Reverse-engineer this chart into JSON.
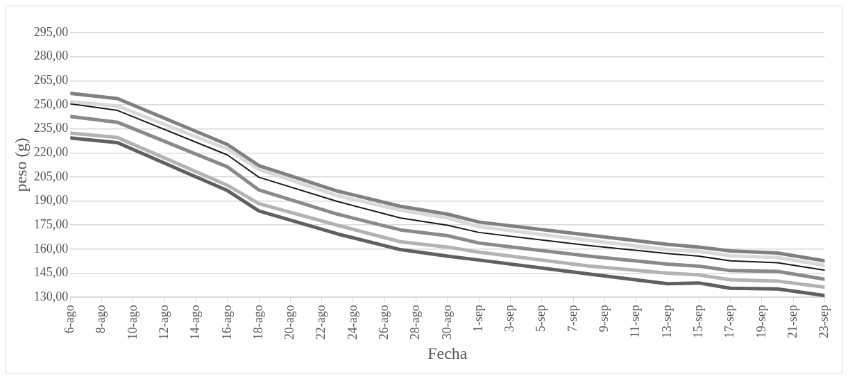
{
  "chart_data": {
    "type": "line",
    "xlabel": "Fecha",
    "ylabel": "peso (g)",
    "x": [
      "--08-06",
      "--08-09",
      "--08-16",
      "--08-18",
      "--08-23",
      "--08-27",
      "--08-30",
      "--09-01",
      "--09-08",
      "--09-13",
      "--09-15",
      "--09-17",
      "--09-20",
      "--09-23"
    ],
    "series": [
      {
        "color": "#808080",
        "values": [
          257.1,
          253.9,
          225.2,
          212.1,
          196.2,
          186.7,
          181.8,
          176.9,
          168.7,
          163.0,
          161.3,
          158.9,
          157.6,
          152.7
        ]
      },
      {
        "color": "#d9d9d9",
        "values": [
          251.9,
          249.3,
          222.4,
          209.7,
          193.3,
          184.3,
          179.4,
          174.0,
          165.5,
          159.7,
          158.6,
          155.9,
          154.8,
          149.9
        ]
      },
      {
        "color": "#1a1a1a",
        "values": [
          250.6,
          246.5,
          218.7,
          204.8,
          189.7,
          179.4,
          174.9,
          170.4,
          162.2,
          157.3,
          155.6,
          152.7,
          151.5,
          146.9
        ]
      },
      {
        "color": "#8a8a8a",
        "values": [
          242.7,
          239.1,
          211.3,
          196.9,
          181.8,
          172.0,
          168.4,
          163.8,
          155.6,
          150.7,
          149.4,
          146.6,
          146.1,
          141.2
        ]
      },
      {
        "color": "#b3b3b3",
        "values": [
          232.3,
          229.6,
          199.8,
          188.4,
          174.9,
          164.6,
          161.3,
          158.1,
          149.5,
          145.0,
          143.9,
          140.9,
          140.1,
          136.3
        ]
      },
      {
        "color": "#606060",
        "values": [
          229.3,
          226.4,
          196.5,
          183.8,
          169.5,
          159.7,
          155.6,
          153.2,
          144.5,
          138.4,
          138.9,
          135.6,
          135.2,
          131.1
        ]
      }
    ],
    "xlim": [
      "--08-06",
      "--09-23"
    ],
    "xticks": [
      {
        "value": "--08-06",
        "label": "6-ago"
      },
      {
        "value": "--08-08",
        "label": "8-ago"
      },
      {
        "value": "--08-10",
        "label": "10-ago"
      },
      {
        "value": "--08-12",
        "label": "12-ago"
      },
      {
        "value": "--08-14",
        "label": "14-ago"
      },
      {
        "value": "--08-16",
        "label": "16-ago"
      },
      {
        "value": "--08-18",
        "label": "18-ago"
      },
      {
        "value": "--08-20",
        "label": "20-ago"
      },
      {
        "value": "--08-22",
        "label": "22-ago"
      },
      {
        "value": "--08-24",
        "label": "24-ago"
      },
      {
        "value": "--08-26",
        "label": "26-ago"
      },
      {
        "value": "--08-28",
        "label": "28-ago"
      },
      {
        "value": "--08-30",
        "label": "30-ago"
      },
      {
        "value": "--09-01",
        "label": "1-sep"
      },
      {
        "value": "--09-03",
        "label": "3-sep"
      },
      {
        "value": "--09-05",
        "label": "5-sep"
      },
      {
        "value": "--09-07",
        "label": "7-sep"
      },
      {
        "value": "--09-09",
        "label": "9-sep"
      },
      {
        "value": "--09-11",
        "label": "11-sep"
      },
      {
        "value": "--09-13",
        "label": "13-sep"
      },
      {
        "value": "--09-15",
        "label": "15-sep"
      },
      {
        "value": "--09-17",
        "label": "17-sep"
      },
      {
        "value": "--09-19",
        "label": "19-sep"
      },
      {
        "value": "--09-21",
        "label": "21-sep"
      },
      {
        "value": "--09-23",
        "label": "23-sep"
      }
    ],
    "ylim": [
      130,
      295
    ],
    "yticks": [
      {
        "value": 130,
        "label": "130,00"
      },
      {
        "value": 145,
        "label": "145,00"
      },
      {
        "value": 160,
        "label": "160,00"
      },
      {
        "value": 175,
        "label": "175,00"
      },
      {
        "value": 190,
        "label": "190,00"
      },
      {
        "value": 205,
        "label": "205,00"
      },
      {
        "value": 220,
        "label": "220,00"
      },
      {
        "value": 235,
        "label": "235,00"
      },
      {
        "value": 250,
        "label": "250,00"
      },
      {
        "value": 265,
        "label": "265,00"
      },
      {
        "value": 280,
        "label": "280,00"
      },
      {
        "value": 295,
        "label": "295,00"
      }
    ],
    "grid": "y",
    "legend": false,
    "marker": "none",
    "line_style": "solid"
  }
}
